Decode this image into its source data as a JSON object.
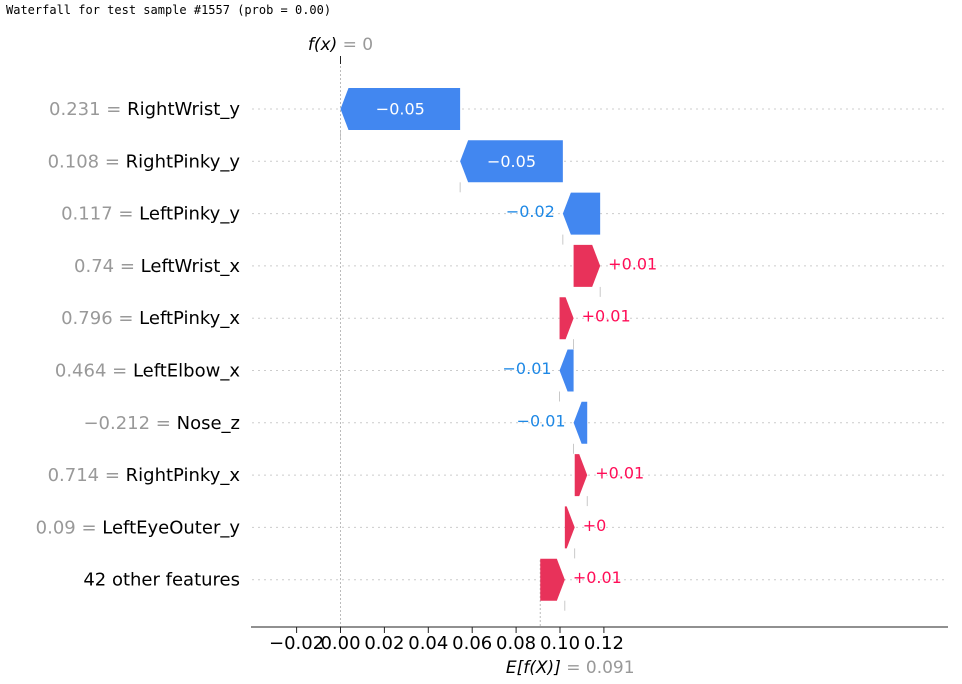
{
  "page": {
    "title": "Waterfall for test sample #1557 (prob = 0.00)"
  },
  "chart_data": {
    "type": "waterfall",
    "fx_label": "f(x) = 0",
    "fx_value": 0.0,
    "base_label": "E[f(X)] = 0.091",
    "base_value": 0.091,
    "xlim": [
      -0.02,
      0.14
    ],
    "x_ticks": [
      -0.02,
      0.0,
      0.02,
      0.04,
      0.06,
      0.08,
      0.1,
      0.12
    ],
    "x_tick_labels": [
      "−0.02",
      "0.00",
      "0.02",
      "0.04",
      "0.06",
      "0.08",
      "0.10",
      "0.12"
    ],
    "colors": {
      "positive": "#ff0d57",
      "negative": "#1e88e5",
      "positive_bar": "#e8325a",
      "negative_bar": "#4287f0"
    },
    "features": [
      {
        "value": "0.231",
        "name": "RightWrist_y",
        "start": 0.0545,
        "end": 0.0,
        "label": "−0.05"
      },
      {
        "value": "0.108",
        "name": "RightPinky_y",
        "start": 0.1013,
        "end": 0.0545,
        "label": "−0.05"
      },
      {
        "value": "0.117",
        "name": "LeftPinky_y",
        "start": 0.1183,
        "end": 0.1013,
        "label": "−0.02"
      },
      {
        "value": "0.74",
        "name": "LeftWrist_x",
        "start": 0.1062,
        "end": 0.1183,
        "label": "+0.01"
      },
      {
        "value": "0.796",
        "name": "LeftPinky_x",
        "start": 0.0998,
        "end": 0.1062,
        "label": "+0.01"
      },
      {
        "value": "0.464",
        "name": "LeftElbow_x",
        "start": 0.1062,
        "end": 0.0998,
        "label": "−0.01"
      },
      {
        "value": "−0.212",
        "name": "Nose_z",
        "start": 0.1124,
        "end": 0.1062,
        "label": "−0.01"
      },
      {
        "value": "0.714",
        "name": "RightPinky_x",
        "start": 0.1067,
        "end": 0.1124,
        "label": "+0.01"
      },
      {
        "value": "0.09",
        "name": "LeftEyeOuter_y",
        "start": 0.1022,
        "end": 0.1067,
        "label": "+0"
      },
      {
        "value": "",
        "name": "42 other features",
        "start": 0.091,
        "end": 0.1022,
        "label": "+0.01"
      }
    ]
  }
}
